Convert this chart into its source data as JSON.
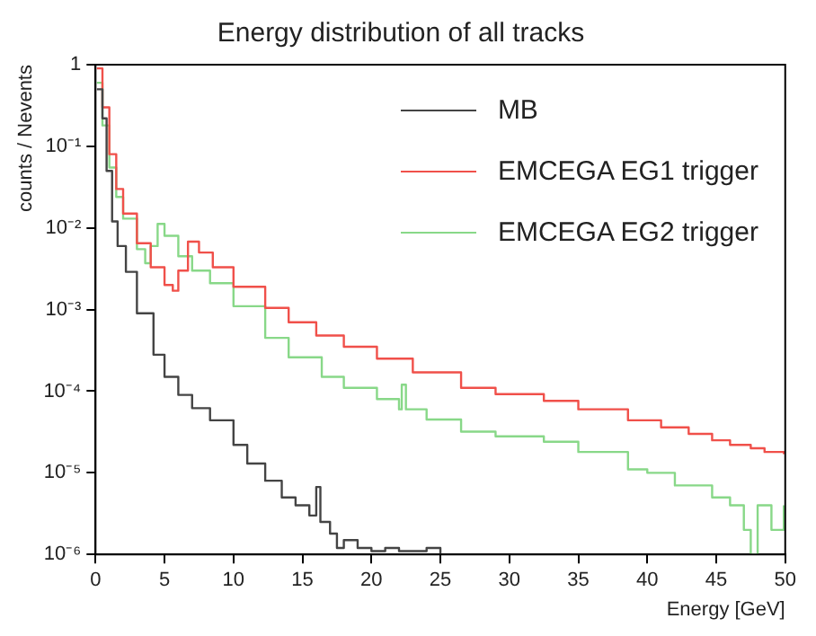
{
  "chart_data": {
    "type": "step",
    "title": "Energy distribution of all tracks",
    "xlabel": "Energy [GeV]",
    "ylabel": "counts / Nevents",
    "log": "y",
    "grid": false,
    "legend": "top right",
    "marker": "none",
    "xlim": [
      0,
      50
    ],
    "xticks": [
      0,
      5,
      10,
      15,
      20,
      25,
      30,
      35,
      40,
      45,
      50
    ],
    "ylim": [
      1e-06,
      1
    ],
    "yticks": [
      {
        "value": 1e-06,
        "label": "10⁻⁶"
      },
      {
        "value": 1e-05,
        "label": "10⁻⁵"
      },
      {
        "value": 0.0001,
        "label": "10⁻⁴"
      },
      {
        "value": 0.001,
        "label": "10⁻³"
      },
      {
        "value": 0.01,
        "label": "10⁻²"
      },
      {
        "value": 0.1,
        "label": "10⁻¹"
      },
      {
        "value": 1,
        "label": "1"
      }
    ],
    "series": [
      {
        "name": "MB",
        "color": "#444444",
        "x": [
          0.1,
          0.5,
          0.8,
          1.2,
          1.6,
          2.2,
          3,
          4.2,
          5,
          6,
          7,
          8.3,
          10,
          11,
          12.3,
          13.5,
          14.5,
          15.5,
          16,
          16.3,
          17,
          17.5,
          18,
          19,
          20,
          21,
          22,
          23,
          24,
          25
        ],
        "values": [
          0.5,
          0.22,
          0.05,
          0.012,
          0.006,
          0.0029,
          0.0009,
          0.00028,
          0.00015,
          9e-05,
          6.2e-05,
          4.4e-05,
          2.2e-05,
          1.3e-05,
          8e-06,
          5e-06,
          4e-06,
          3e-06,
          6.7e-06,
          2.5e-06,
          1.8e-06,
          1.2e-06,
          1.5e-06,
          1.2e-06,
          1.1e-06,
          1.2e-06,
          1.1e-06,
          1.1e-06,
          1.2e-06,
          1e-06
        ]
      },
      {
        "name": "EMCEGA EG1 trigger",
        "color": "#f0504a",
        "x": [
          0.1,
          0.5,
          1,
          1.5,
          2,
          3,
          4,
          5,
          5.6,
          6,
          6.7,
          7.5,
          8.5,
          10,
          12.3,
          14,
          16,
          18,
          20.4,
          23,
          26.5,
          29,
          32.5,
          35,
          38.6,
          41,
          43,
          44.7,
          46,
          47.5,
          48.5,
          49.9
        ],
        "values": [
          0.9,
          0.3,
          0.08,
          0.03,
          0.015,
          0.0065,
          0.0033,
          0.002,
          0.0017,
          0.003,
          0.0068,
          0.005,
          0.0033,
          0.0019,
          0.00105,
          0.0007,
          0.00048,
          0.00035,
          0.00025,
          0.00017,
          0.00011,
          9.2e-05,
          7.6e-05,
          6e-05,
          4.4e-05,
          3.6e-05,
          3e-05,
          2.5e-05,
          2.2e-05,
          2e-05,
          1.8e-05,
          1.7e-05
        ]
      },
      {
        "name": "EMCEGA EG2 trigger",
        "color": "#88d888",
        "x": [
          0.1,
          0.5,
          1,
          1.5,
          2,
          3,
          3.6,
          4,
          4.5,
          5,
          6,
          7,
          8.3,
          10,
          12.3,
          14,
          16.4,
          18,
          20.4,
          22,
          22.2,
          22.5,
          24,
          26.5,
          29,
          32.5,
          35,
          38.6,
          40,
          42,
          44.7,
          46,
          47,
          47.5,
          48,
          49,
          49.9
        ],
        "values": [
          0.6,
          0.18,
          0.055,
          0.024,
          0.013,
          0.0055,
          0.0037,
          0.006,
          0.0112,
          0.008,
          0.0045,
          0.003,
          0.0021,
          0.0011,
          0.00045,
          0.00026,
          0.00015,
          0.00011,
          8e-05,
          6e-05,
          0.00012,
          6e-05,
          4.5e-05,
          3.2e-05,
          2.8e-05,
          2.4e-05,
          1.8e-05,
          1.1e-05,
          1e-05,
          7e-06,
          5e-06,
          4e-06,
          2e-06,
          1e-06,
          4e-06,
          2e-06,
          4e-06
        ]
      }
    ]
  }
}
